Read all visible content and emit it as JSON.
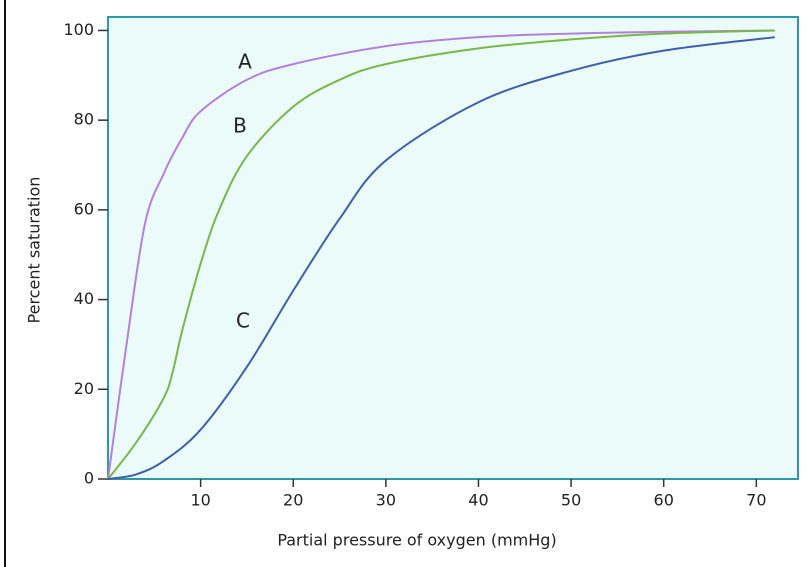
{
  "chart_data": {
    "type": "line",
    "x_label": "Partial pressure of oxygen (mmHg)",
    "y_label": "Percent saturation",
    "xlim": [
      0,
      74.5
    ],
    "ylim": [
      0,
      103
    ],
    "xticks": [
      10,
      20,
      30,
      40,
      50,
      60,
      70
    ],
    "yticks": [
      0,
      20,
      40,
      60,
      80,
      100
    ],
    "series": [
      {
        "name": "A",
        "color": "#b57fdc",
        "x": [
          0,
          2,
          4,
          6,
          8,
          10,
          15,
          20,
          30,
          40,
          50,
          60,
          72
        ],
        "values": [
          0,
          30,
          57,
          68,
          76,
          82,
          89,
          92.5,
          96.5,
          98.5,
          99.3,
          99.7,
          100
        ]
      },
      {
        "name": "B",
        "color": "#7ab648",
        "x": [
          0,
          3,
          6,
          7,
          8,
          10,
          12,
          15,
          20,
          25,
          30,
          40,
          50,
          60,
          72
        ],
        "values": [
          0,
          8,
          18,
          24,
          33,
          48,
          60,
          72,
          83,
          89,
          92.5,
          96,
          98,
          99.3,
          100
        ]
      },
      {
        "name": "C",
        "color": "#3f5fa8",
        "x": [
          0,
          3,
          6,
          10,
          15,
          20,
          25,
          30,
          40,
          50,
          60,
          72
        ],
        "values": [
          0,
          1,
          4,
          11,
          25,
          42,
          58,
          71,
          84,
          91,
          95.5,
          98.5
        ]
      }
    ]
  }
}
